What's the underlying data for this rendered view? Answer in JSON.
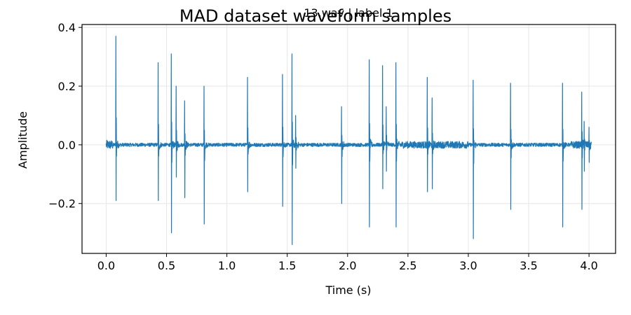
{
  "chart_data": {
    "type": "line",
    "suptitle": "MAD dataset waveform samples",
    "title": "13.wav | label 1",
    "xlabel": "Time (s)",
    "ylabel": "Amplitude",
    "xlim": [
      -0.2,
      4.22
    ],
    "ylim": [
      -0.37,
      0.41
    ],
    "xticks": [
      0.0,
      0.5,
      1.0,
      1.5,
      2.0,
      2.5,
      3.0,
      3.5,
      4.0
    ],
    "xtick_labels": [
      "0.0",
      "0.5",
      "1.0",
      "1.5",
      "2.0",
      "2.5",
      "3.0",
      "3.5",
      "4.0"
    ],
    "yticks": [
      -0.2,
      0.0,
      0.2,
      0.4
    ],
    "ytick_labels": [
      "−0.2",
      "0.0",
      "0.2",
      "0.4"
    ],
    "grid": true,
    "color": "#1f77b4",
    "duration": 4.02,
    "series": [
      {
        "spikes": [
          {
            "t": 0.08,
            "max": 0.37,
            "min": -0.19
          },
          {
            "t": 0.43,
            "max": 0.28,
            "min": -0.19
          },
          {
            "t": 0.54,
            "max": 0.31,
            "min": -0.3
          },
          {
            "t": 0.58,
            "max": 0.2,
            "min": -0.11
          },
          {
            "t": 0.65,
            "max": 0.15,
            "min": -0.18
          },
          {
            "t": 0.81,
            "max": 0.2,
            "min": -0.27
          },
          {
            "t": 1.17,
            "max": 0.23,
            "min": -0.16
          },
          {
            "t": 1.46,
            "max": 0.24,
            "min": -0.21
          },
          {
            "t": 1.54,
            "max": 0.31,
            "min": -0.34
          },
          {
            "t": 1.57,
            "max": 0.1,
            "min": -0.08
          },
          {
            "t": 1.95,
            "max": 0.13,
            "min": -0.2
          },
          {
            "t": 2.18,
            "max": 0.29,
            "min": -0.28
          },
          {
            "t": 2.29,
            "max": 0.27,
            "min": -0.15
          },
          {
            "t": 2.32,
            "max": 0.13,
            "min": -0.09
          },
          {
            "t": 2.4,
            "max": 0.28,
            "min": -0.28
          },
          {
            "t": 2.66,
            "max": 0.23,
            "min": -0.16
          },
          {
            "t": 2.7,
            "max": 0.16,
            "min": -0.15
          },
          {
            "t": 3.04,
            "max": 0.22,
            "min": -0.32
          },
          {
            "t": 3.35,
            "max": 0.21,
            "min": -0.22
          },
          {
            "t": 3.78,
            "max": 0.21,
            "min": -0.28
          },
          {
            "t": 3.94,
            "max": 0.18,
            "min": -0.22
          },
          {
            "t": 3.96,
            "max": 0.08,
            "min": -0.09
          },
          {
            "t": 4.0,
            "max": 0.06,
            "min": -0.06
          }
        ]
      }
    ]
  }
}
